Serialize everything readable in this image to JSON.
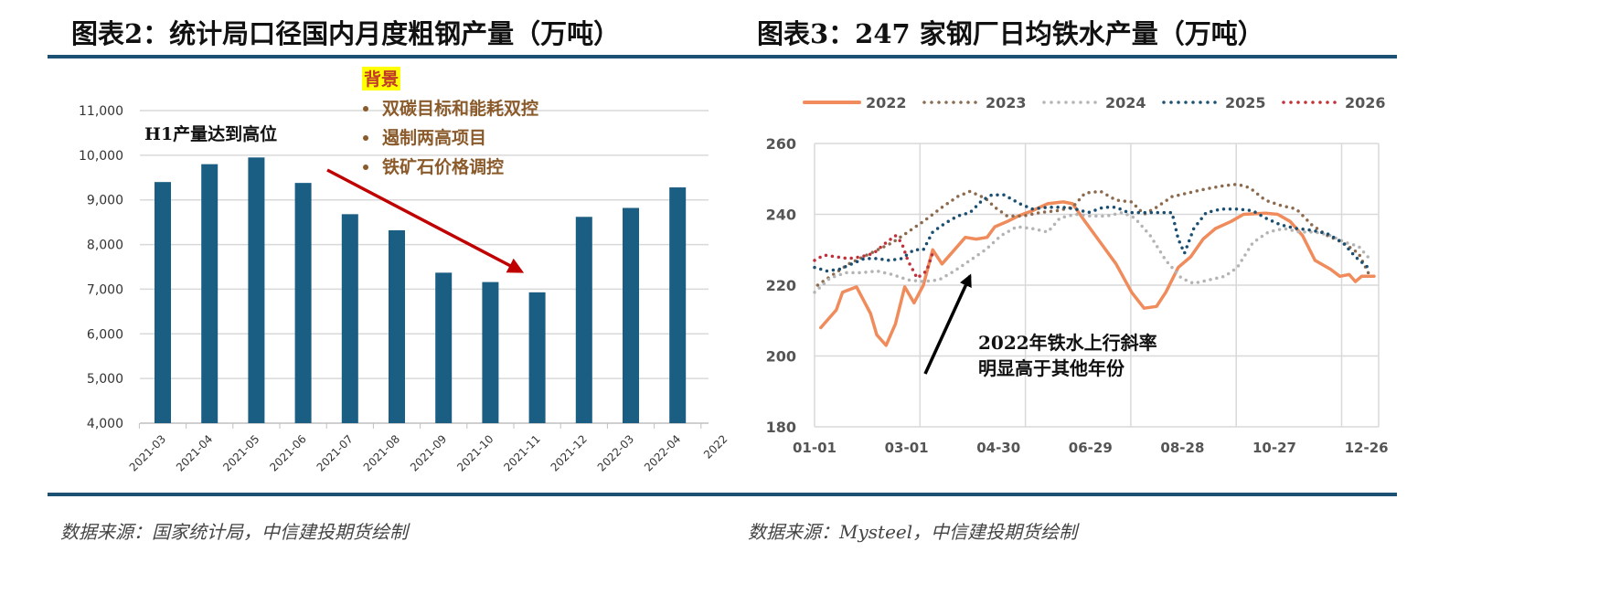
{
  "left": {
    "title": "图表2：统计局口径国内月度粗钢产量（万吨）",
    "source": "数据来源：国家统计局，中信建投期货绘制",
    "annotation_h1": "H1产量达到高位",
    "background_heading": "背景",
    "background_items": [
      "双碳目标和能耗双控",
      "遏制两高项目",
      "铁矿石价格调控"
    ]
  },
  "right": {
    "title": "图表3：247 家钢厂日均铁水产量（万吨）",
    "source": "数据来源：Mysteel，中信建投期货绘制",
    "annotation": [
      "2022年铁水上行斜率",
      "明显高于其他年份"
    ]
  },
  "chart_data": [
    {
      "type": "bar",
      "title": "统计局口径国内月度粗钢产量（万吨）",
      "categories": [
        "2021-03",
        "2021-04",
        "2021-05",
        "2021-06",
        "2021-07",
        "2021-08",
        "2021-09",
        "2021-10",
        "2021-11",
        "2021-12",
        "2022-03",
        "2022-04",
        "2022"
      ],
      "values": [
        9400,
        9800,
        9950,
        9380,
        8680,
        8320,
        7370,
        7160,
        6930,
        8620,
        8820,
        9280,
        null
      ],
      "ylim": [
        4000,
        11000
      ],
      "yticks": [
        "4,000",
        "5,000",
        "6,000",
        "7,000",
        "8,000",
        "9,000",
        "10,000",
        "11,000"
      ],
      "color": "#1b5e84",
      "grid": true
    },
    {
      "type": "line",
      "title": "247家钢厂日均铁水产量（万吨）",
      "xlabels": [
        "01-01",
        "03-01",
        "04-30",
        "06-29",
        "08-28",
        "10-27",
        "12-26"
      ],
      "x_unit": "day of year",
      "ylim": [
        180,
        260
      ],
      "yticks": [
        "180",
        "200",
        "220",
        "240",
        "260"
      ],
      "legend_position": "top",
      "series": [
        {
          "name": "2022",
          "color": "#f08b5b",
          "style": "solid",
          "points": [
            [
              4,
              208
            ],
            [
              14,
              213
            ],
            [
              18,
              218
            ],
            [
              27,
              219.5
            ],
            [
              36,
              212
            ],
            [
              40,
              206
            ],
            [
              46,
              203
            ],
            [
              52,
              209
            ],
            [
              58,
              219.5
            ],
            [
              64,
              215
            ],
            [
              70,
              220
            ],
            [
              76,
              230
            ],
            [
              82,
              226
            ],
            [
              90,
              230
            ],
            [
              97,
              233.5
            ],
            [
              104,
              233
            ],
            [
              111,
              233.5
            ],
            [
              116,
              236.5
            ],
            [
              124,
              238
            ],
            [
              131,
              239.5
            ],
            [
              140,
              241
            ],
            [
              150,
              243
            ],
            [
              160,
              243.5
            ],
            [
              166,
              243
            ],
            [
              174,
              238
            ],
            [
              184,
              232
            ],
            [
              194,
              226
            ],
            [
              204,
              218
            ],
            [
              212,
              213.5
            ],
            [
              220,
              214
            ],
            [
              226,
              218
            ],
            [
              234,
              225
            ],
            [
              242,
              228
            ],
            [
              250,
              233
            ],
            [
              258,
              236
            ],
            [
              268,
              238
            ],
            [
              276,
              240
            ],
            [
              290,
              240.3
            ],
            [
              298,
              240
            ],
            [
              306,
              238
            ],
            [
              314,
              234
            ],
            [
              322,
              227
            ],
            [
              332,
              224.5
            ],
            [
              338,
              222.5
            ],
            [
              344,
              223
            ],
            [
              348,
              221
            ],
            [
              352,
              222.5
            ],
            [
              360,
              222.5
            ]
          ]
        },
        {
          "name": "2023",
          "color": "#8b6a4e",
          "style": "dotted",
          "points": [
            [
              2,
              220
            ],
            [
              12,
              223
            ],
            [
              22,
              226
            ],
            [
              36,
              229
            ],
            [
              50,
              232
            ],
            [
              60,
              235
            ],
            [
              70,
              238
            ],
            [
              82,
              242
            ],
            [
              92,
              245
            ],
            [
              100,
              246.5
            ],
            [
              110,
              244.5
            ],
            [
              116,
              242
            ],
            [
              124,
              239.5
            ],
            [
              134,
              239.5
            ],
            [
              145,
              240.5
            ],
            [
              156,
              241
            ],
            [
              166,
              242
            ],
            [
              174,
              246
            ],
            [
              184,
              246.5
            ],
            [
              194,
              244
            ],
            [
              204,
              243.5
            ],
            [
              212,
              240
            ],
            [
              220,
              242
            ],
            [
              230,
              245
            ],
            [
              240,
              246
            ],
            [
              250,
              247
            ],
            [
              262,
              248
            ],
            [
              272,
              248.5
            ],
            [
              280,
              247.5
            ],
            [
              290,
              244
            ],
            [
              300,
              242.5
            ],
            [
              310,
              241.5
            ],
            [
              320,
              237
            ],
            [
              330,
              234
            ],
            [
              340,
              232
            ],
            [
              350,
              229
            ],
            [
              358,
              222
            ]
          ]
        },
        {
          "name": "2024",
          "color": "#b4b4b4",
          "style": "dotted",
          "points": [
            [
              0,
              218
            ],
            [
              10,
              222
            ],
            [
              20,
              223.5
            ],
            [
              30,
              223.5
            ],
            [
              40,
              224
            ],
            [
              50,
              223
            ],
            [
              60,
              221.5
            ],
            [
              70,
              221
            ],
            [
              80,
              221.5
            ],
            [
              90,
              224
            ],
            [
              100,
              227
            ],
            [
              110,
              230
            ],
            [
              120,
              234
            ],
            [
              130,
              236.5
            ],
            [
              140,
              236
            ],
            [
              150,
              235
            ],
            [
              158,
              239
            ],
            [
              168,
              240
            ],
            [
              178,
              239.5
            ],
            [
              188,
              239.5
            ],
            [
              198,
              240.5
            ],
            [
              206,
              239
            ],
            [
              216,
              234
            ],
            [
              226,
              227
            ],
            [
              236,
              222
            ],
            [
              244,
              220.5
            ],
            [
              254,
              221.5
            ],
            [
              264,
              222.5
            ],
            [
              272,
              225
            ],
            [
              282,
              232
            ],
            [
              292,
              235
            ],
            [
              302,
              236
            ],
            [
              312,
              235
            ],
            [
              322,
              235
            ],
            [
              332,
              234
            ],
            [
              342,
              232
            ],
            [
              350,
              231
            ],
            [
              356,
              228
            ]
          ]
        },
        {
          "name": "2025",
          "color": "#1b4f72",
          "style": "dotted",
          "points": [
            [
              0,
              225
            ],
            [
              8,
              224
            ],
            [
              16,
              224.5
            ],
            [
              24,
              226
            ],
            [
              32,
              227.5
            ],
            [
              40,
              227.5
            ],
            [
              48,
              227
            ],
            [
              56,
              227.5
            ],
            [
              64,
              230
            ],
            [
              70,
              230
            ],
            [
              76,
              235
            ],
            [
              84,
              237.5
            ],
            [
              92,
              239.5
            ],
            [
              100,
              240.5
            ],
            [
              108,
              244
            ],
            [
              114,
              245.5
            ],
            [
              122,
              245.5
            ],
            [
              132,
              243
            ],
            [
              140,
              241.5
            ],
            [
              150,
              242
            ],
            [
              160,
              242
            ],
            [
              168,
              241.5
            ],
            [
              176,
              240.5
            ],
            [
              186,
              242
            ],
            [
              194,
              242
            ],
            [
              202,
              240.5
            ],
            [
              210,
              240.5
            ],
            [
              220,
              240.5
            ],
            [
              230,
              240.5
            ],
            [
              234,
              233
            ],
            [
              238,
              229
            ],
            [
              244,
              236
            ],
            [
              252,
              240.5
            ],
            [
              262,
              241.5
            ],
            [
              272,
              241.5
            ],
            [
              282,
              241
            ],
            [
              290,
              239
            ],
            [
              300,
              237
            ],
            [
              310,
              236
            ],
            [
              320,
              235.5
            ],
            [
              330,
              234.5
            ],
            [
              340,
              232
            ],
            [
              348,
              228
            ],
            [
              356,
              225
            ]
          ]
        },
        {
          "name": "2026",
          "color": "#c0303a",
          "style": "dotted",
          "points": [
            [
              0,
              227
            ],
            [
              6,
              228.5
            ],
            [
              14,
              228
            ],
            [
              22,
              227.5
            ],
            [
              30,
              228
            ],
            [
              38,
              229
            ],
            [
              46,
              232
            ],
            [
              52,
              234
            ],
            [
              56,
              232
            ],
            [
              60,
              227
            ],
            [
              66,
              222
            ],
            [
              72,
              224
            ],
            [
              76,
              229
            ]
          ]
        }
      ],
      "grid": true
    }
  ]
}
